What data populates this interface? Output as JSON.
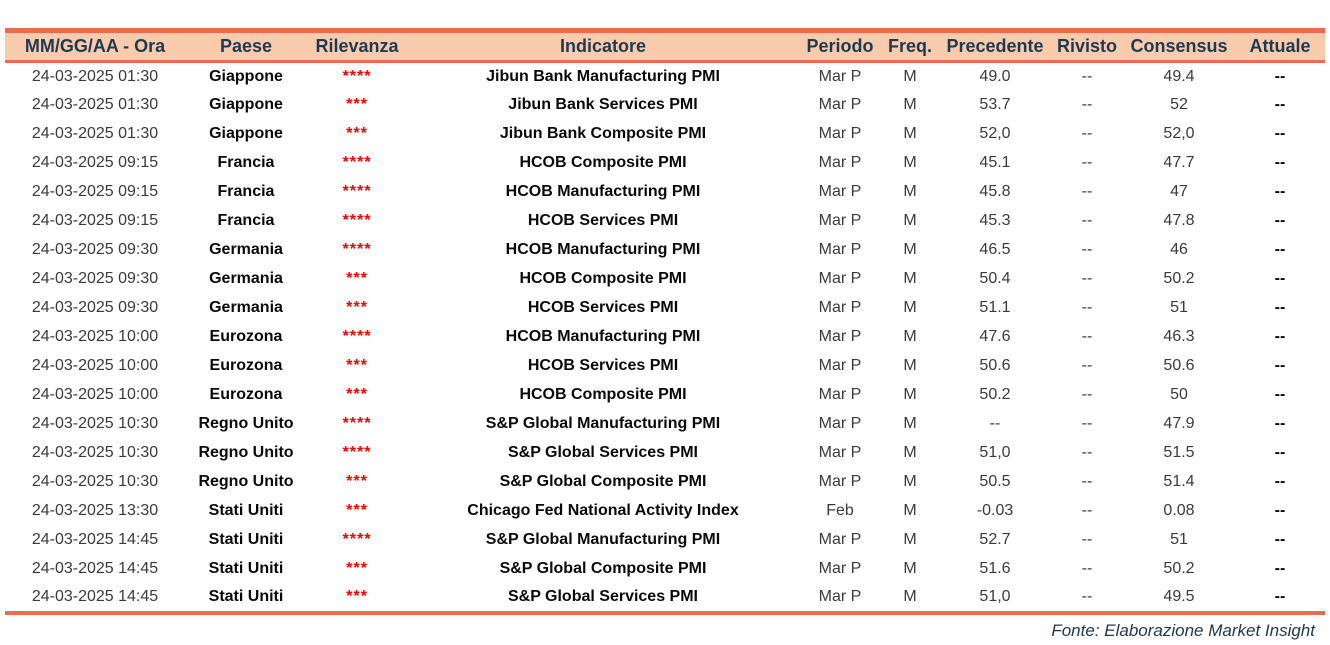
{
  "colors": {
    "header_bg": "#F8CBAD",
    "border": "#ED6A4E",
    "header_text": "#1E3A52",
    "star": "#FF0000"
  },
  "table": {
    "columns": [
      "MM/GG/AA - Ora",
      "Paese",
      "Rilevanza",
      "Indicatore",
      "Periodo",
      "Freq.",
      "Precedente",
      "Rivisto",
      "Consensus",
      "Attuale"
    ],
    "rows": [
      {
        "datetime": "24-03-2025 01:30",
        "paese": "Giappone",
        "rilevanza": "****",
        "indicatore": "Jibun Bank Manufacturing PMI",
        "periodo": "Mar P",
        "freq": "M",
        "precedente": "49.0",
        "rivisto": "--",
        "consensus": "49.4",
        "attuale": "--"
      },
      {
        "datetime": "24-03-2025 01:30",
        "paese": "Giappone",
        "rilevanza": "***",
        "indicatore": "Jibun Bank Services PMI",
        "periodo": "Mar P",
        "freq": "M",
        "precedente": "53.7",
        "rivisto": "--",
        "consensus": "52",
        "attuale": "--"
      },
      {
        "datetime": "24-03-2025 01:30",
        "paese": "Giappone",
        "rilevanza": "***",
        "indicatore": "Jibun Bank Composite PMI",
        "periodo": "Mar P",
        "freq": "M",
        "precedente": "52,0",
        "rivisto": "--",
        "consensus": "52,0",
        "attuale": "--"
      },
      {
        "datetime": "24-03-2025 09:15",
        "paese": "Francia",
        "rilevanza": "****",
        "indicatore": "HCOB Composite PMI",
        "periodo": "Mar P",
        "freq": "M",
        "precedente": "45.1",
        "rivisto": "--",
        "consensus": "47.7",
        "attuale": "--"
      },
      {
        "datetime": "24-03-2025 09:15",
        "paese": "Francia",
        "rilevanza": "****",
        "indicatore": "HCOB Manufacturing PMI",
        "periodo": "Mar P",
        "freq": "M",
        "precedente": "45.8",
        "rivisto": "--",
        "consensus": "47",
        "attuale": "--"
      },
      {
        "datetime": "24-03-2025 09:15",
        "paese": "Francia",
        "rilevanza": "****",
        "indicatore": "HCOB Services PMI",
        "periodo": "Mar P",
        "freq": "M",
        "precedente": "45.3",
        "rivisto": "--",
        "consensus": "47.8",
        "attuale": "--"
      },
      {
        "datetime": "24-03-2025 09:30",
        "paese": "Germania",
        "rilevanza": "****",
        "indicatore": "HCOB Manufacturing PMI",
        "periodo": "Mar P",
        "freq": "M",
        "precedente": "46.5",
        "rivisto": "--",
        "consensus": "46",
        "attuale": "--"
      },
      {
        "datetime": "24-03-2025 09:30",
        "paese": "Germania",
        "rilevanza": "***",
        "indicatore": "HCOB Composite PMI",
        "periodo": "Mar P",
        "freq": "M",
        "precedente": "50.4",
        "rivisto": "--",
        "consensus": "50.2",
        "attuale": "--"
      },
      {
        "datetime": "24-03-2025 09:30",
        "paese": "Germania",
        "rilevanza": "***",
        "indicatore": "HCOB Services PMI",
        "periodo": "Mar P",
        "freq": "M",
        "precedente": "51.1",
        "rivisto": "--",
        "consensus": "51",
        "attuale": "--"
      },
      {
        "datetime": "24-03-2025 10:00",
        "paese": "Eurozona",
        "rilevanza": "****",
        "indicatore": "HCOB Manufacturing PMI",
        "periodo": "Mar P",
        "freq": "M",
        "precedente": "47.6",
        "rivisto": "--",
        "consensus": "46.3",
        "attuale": "--"
      },
      {
        "datetime": "24-03-2025 10:00",
        "paese": "Eurozona",
        "rilevanza": "***",
        "indicatore": "HCOB Services PMI",
        "periodo": "Mar P",
        "freq": "M",
        "precedente": "50.6",
        "rivisto": "--",
        "consensus": "50.6",
        "attuale": "--"
      },
      {
        "datetime": "24-03-2025 10:00",
        "paese": "Eurozona",
        "rilevanza": "***",
        "indicatore": "HCOB Composite PMI",
        "periodo": "Mar P",
        "freq": "M",
        "precedente": "50.2",
        "rivisto": "--",
        "consensus": "50",
        "attuale": "--"
      },
      {
        "datetime": "24-03-2025 10:30",
        "paese": "Regno Unito",
        "rilevanza": "****",
        "indicatore": "S&P Global Manufacturing PMI",
        "periodo": "Mar P",
        "freq": "M",
        "precedente": "--",
        "rivisto": "--",
        "consensus": "47.9",
        "attuale": "--"
      },
      {
        "datetime": "24-03-2025 10:30",
        "paese": "Regno Unito",
        "rilevanza": "****",
        "indicatore": "S&P Global Services PMI",
        "periodo": "Mar P",
        "freq": "M",
        "precedente": "51,0",
        "rivisto": "--",
        "consensus": "51.5",
        "attuale": "--"
      },
      {
        "datetime": "24-03-2025 10:30",
        "paese": "Regno Unito",
        "rilevanza": "***",
        "indicatore": "S&P Global Composite PMI",
        "periodo": "Mar P",
        "freq": "M",
        "precedente": "50.5",
        "rivisto": "--",
        "consensus": "51.4",
        "attuale": "--"
      },
      {
        "datetime": "24-03-2025 13:30",
        "paese": "Stati Uniti",
        "rilevanza": "***",
        "indicatore": "Chicago Fed National Activity Index",
        "periodo": "Feb",
        "freq": "M",
        "precedente": "-0.03",
        "rivisto": "--",
        "consensus": "0.08",
        "attuale": "--"
      },
      {
        "datetime": "24-03-2025 14:45",
        "paese": "Stati Uniti",
        "rilevanza": "****",
        "indicatore": "S&P Global Manufacturing PMI",
        "periodo": "Mar P",
        "freq": "M",
        "precedente": "52.7",
        "rivisto": "--",
        "consensus": "51",
        "attuale": "--"
      },
      {
        "datetime": "24-03-2025 14:45",
        "paese": "Stati Uniti",
        "rilevanza": "***",
        "indicatore": "S&P Global Composite PMI",
        "periodo": "Mar P",
        "freq": "M",
        "precedente": "51.6",
        "rivisto": "--",
        "consensus": "50.2",
        "attuale": "--"
      },
      {
        "datetime": "24-03-2025 14:45",
        "paese": "Stati Uniti",
        "rilevanza": "***",
        "indicatore": "S&P Global Services PMI",
        "periodo": "Mar P",
        "freq": "M",
        "precedente": "51,0",
        "rivisto": "--",
        "consensus": "49.5",
        "attuale": "--"
      }
    ]
  },
  "footer": {
    "source": "Fonte: Elaborazione Market Insight"
  }
}
